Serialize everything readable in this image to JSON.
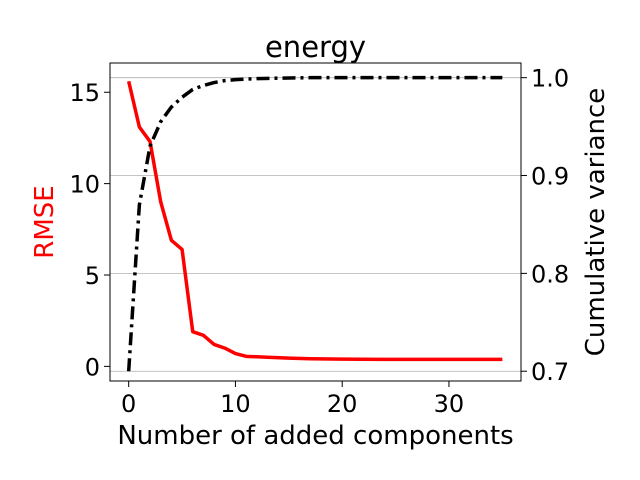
{
  "chart_data": {
    "type": "line",
    "title": "energy",
    "xlabel": "Number of added components",
    "ylabel_left": "RMSE",
    "ylabel_right": "Cumulative variance",
    "xlim": [
      -1.75,
      36.75
    ],
    "ylim_left": [
      -0.8,
      16.6
    ],
    "ylim_right": [
      0.69,
      1.015
    ],
    "x_ticks": [
      0,
      10,
      20,
      30
    ],
    "y_left_ticks": [
      0,
      5,
      10,
      15
    ],
    "y_right_ticks": [
      0.7,
      0.8,
      0.9,
      1.0
    ],
    "y_right_tick_labels": [
      "0.7",
      "0.8",
      "0.9",
      "1.0"
    ],
    "grid": "horizontal lines at right-axis ticks",
    "colors": {
      "rmse": "#ff0000",
      "variance": "#000000",
      "label_left": "#ff0000",
      "grid": "#b0b0b0"
    },
    "series": [
      {
        "axis": "left",
        "style": "solid",
        "x": [
          0,
          1,
          2,
          3,
          4,
          5,
          6,
          7,
          8,
          9,
          10,
          11,
          13,
          15,
          17,
          20,
          25,
          30,
          35
        ],
        "values": [
          15.6,
          13.1,
          12.3,
          9.0,
          6.9,
          6.4,
          1.9,
          1.7,
          1.2,
          1.0,
          0.7,
          0.55,
          0.5,
          0.45,
          0.42,
          0.4,
          0.38,
          0.38,
          0.38
        ]
      },
      {
        "axis": "right",
        "style": "dashdot",
        "x": [
          0,
          1,
          2,
          3,
          4,
          5,
          6,
          7,
          8,
          9,
          10,
          12,
          14,
          17,
          20,
          25,
          30,
          35
        ],
        "values": [
          0.7,
          0.87,
          0.93,
          0.955,
          0.97,
          0.98,
          0.988,
          0.992,
          0.995,
          0.997,
          0.998,
          0.999,
          0.9995,
          1.0,
          1.0,
          1.0,
          1.0,
          1.0
        ]
      }
    ]
  }
}
